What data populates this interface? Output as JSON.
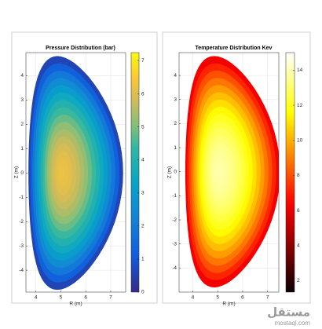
{
  "chart_data": [
    {
      "type": "contour",
      "title": "Pressure Distribution (bar)",
      "xlabel": "R (m)",
      "ylabel": "Z (m)",
      "xlim": [
        3.6,
        7.6
      ],
      "xticks": [
        4,
        5,
        6,
        7
      ],
      "ylim": [
        -4.9,
        4.95
      ],
      "yticks": [
        -4,
        -3,
        -2,
        -1,
        0,
        1,
        2,
        3,
        4
      ],
      "colormap": "parula",
      "clim": [
        0,
        7.25
      ],
      "cticks": [
        0,
        1,
        2,
        3,
        4,
        5,
        6,
        7
      ],
      "grid": true
    },
    {
      "type": "contour",
      "title": "Temperature Distribution Kev",
      "xlabel": "R (m)",
      "ylabel": "Z (m)",
      "xlim": [
        3.45,
        7.45
      ],
      "xticks": [
        4,
        5,
        6,
        7
      ],
      "ylim": [
        -5,
        4.95
      ],
      "yticks": [
        -4,
        -3,
        -2,
        -1,
        0,
        1,
        2,
        3,
        4
      ],
      "colormap": "hot",
      "clim": [
        1.35,
        15
      ],
      "cticks": [
        2,
        4,
        6,
        8,
        10,
        12,
        14
      ],
      "grid": true
    }
  ],
  "watermark": {
    "arabic": "مستقل",
    "latin": "mostaql.com"
  }
}
